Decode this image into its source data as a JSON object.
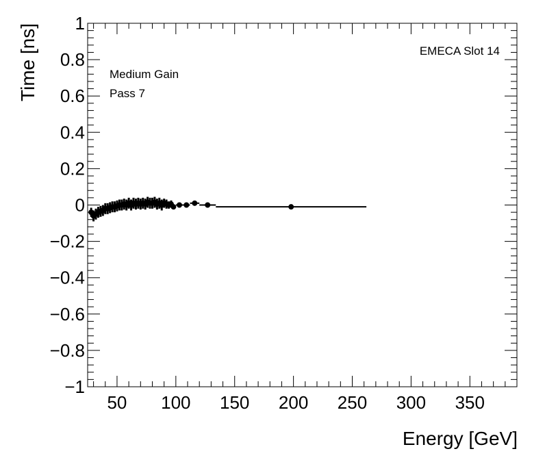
{
  "chart_data": {
    "type": "scatter",
    "title": "",
    "xlabel": "Energy [GeV]",
    "ylabel": "Time [ns]",
    "xlim": [
      25,
      390
    ],
    "ylim": [
      -1,
      1
    ],
    "x_ticks": [
      50,
      100,
      150,
      200,
      250,
      300,
      350
    ],
    "y_ticks": [
      -1,
      -0.8,
      -0.6,
      -0.4,
      -0.2,
      0,
      0.2,
      0.4,
      0.6,
      0.8,
      1
    ],
    "x_tick_labels": [
      "50",
      "100",
      "150",
      "200",
      "250",
      "300",
      "350"
    ],
    "y_tick_labels": [
      "−1",
      "−0.8",
      "−0.6",
      "−0.4",
      "−0.2",
      "0",
      "0.2",
      "0.4",
      "0.6",
      "0.8",
      "1"
    ],
    "grid": false,
    "legend": "none",
    "annotations": {
      "label": "EMECA Slot 14",
      "gain": "Medium Gain",
      "pass": "Pass 7"
    },
    "series": [
      {
        "name": "Medium Gain",
        "x": [
          28,
          30,
          32,
          34,
          36,
          38,
          40,
          42,
          44,
          46,
          48,
          50,
          52,
          54,
          56,
          58,
          60,
          62,
          64,
          66,
          68,
          70,
          72,
          74,
          76,
          78,
          80,
          82,
          84,
          86,
          88,
          90,
          92,
          94,
          96,
          98,
          103,
          109,
          116,
          127,
          198
        ],
        "y": [
          -0.04,
          -0.06,
          -0.05,
          -0.04,
          -0.035,
          -0.03,
          -0.02,
          -0.02,
          -0.015,
          -0.01,
          -0.01,
          -0.005,
          0.0,
          0.0,
          0.005,
          0.0,
          0.01,
          0.0,
          0.01,
          0.005,
          0.01,
          0.005,
          0.01,
          0.005,
          0.015,
          0.01,
          0.01,
          0.015,
          0.005,
          0.01,
          0.0,
          0.01,
          0.005,
          0.0,
          0.005,
          -0.01,
          0.0,
          0.0,
          0.01,
          0.0,
          -0.01
        ],
        "y_err": [
          0.025,
          0.03,
          0.03,
          0.03,
          0.03,
          0.03,
          0.03,
          0.03,
          0.03,
          0.03,
          0.03,
          0.03,
          0.03,
          0.03,
          0.03,
          0.03,
          0.03,
          0.03,
          0.03,
          0.03,
          0.03,
          0.03,
          0.03,
          0.03,
          0.03,
          0.03,
          0.03,
          0.03,
          0.03,
          0.03,
          0.03,
          0.025,
          0.025,
          0.02,
          0.02,
          0.01,
          0.01,
          0.008,
          0.006,
          0.006,
          0.004
        ],
        "x_err": [
          1,
          1,
          1,
          1,
          1,
          1,
          1,
          1,
          1,
          1,
          1,
          1,
          1,
          1,
          1,
          1,
          1,
          1,
          1,
          1,
          1,
          1,
          1,
          1,
          1,
          1,
          1,
          1,
          1,
          1,
          1,
          1,
          1,
          1,
          1,
          1,
          3,
          3,
          4,
          7,
          64
        ]
      }
    ]
  }
}
